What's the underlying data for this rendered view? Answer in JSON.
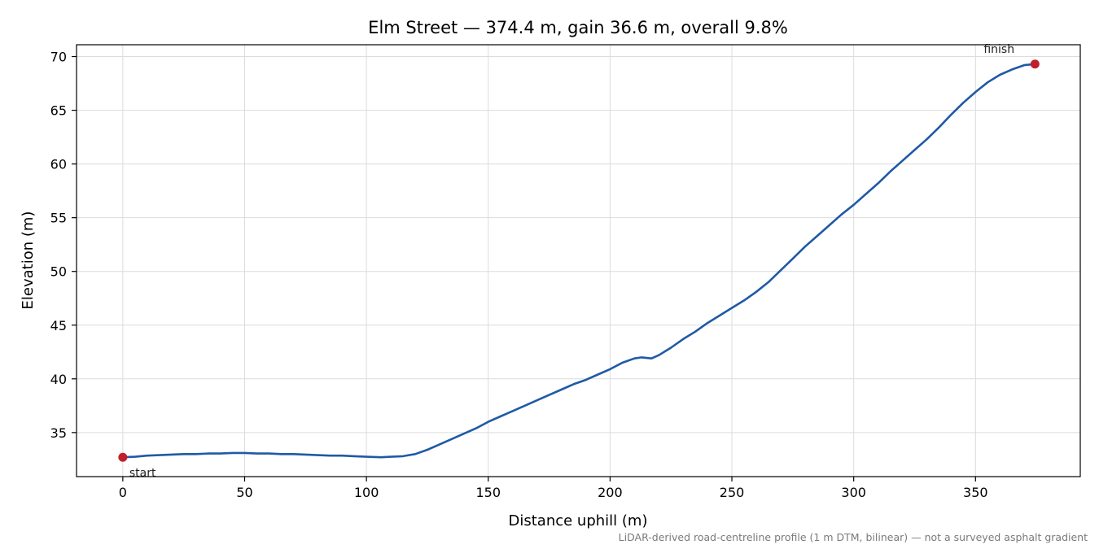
{
  "chart_data": {
    "type": "line",
    "title": "Elm Street — 374.4 m, gain 36.6 m, overall 9.8%",
    "xlabel": "Distance uphill (m)",
    "ylabel": "Elevation (m)",
    "xlim": [
      -19,
      393
    ],
    "ylim": [
      30.9,
      71.1
    ],
    "x_ticks": [
      0,
      50,
      100,
      150,
      200,
      250,
      300,
      350
    ],
    "y_ticks": [
      35,
      40,
      45,
      50,
      55,
      60,
      65,
      70
    ],
    "grid": true,
    "series": [
      {
        "color": "#1f5aa6",
        "points": [
          [
            0,
            32.7
          ],
          [
            5,
            32.75
          ],
          [
            10,
            32.85
          ],
          [
            15,
            32.9
          ],
          [
            20,
            32.95
          ],
          [
            25,
            33.0
          ],
          [
            30,
            33.0
          ],
          [
            35,
            33.05
          ],
          [
            40,
            33.05
          ],
          [
            45,
            33.1
          ],
          [
            50,
            33.1
          ],
          [
            55,
            33.05
          ],
          [
            60,
            33.05
          ],
          [
            65,
            33.0
          ],
          [
            70,
            33.0
          ],
          [
            75,
            32.95
          ],
          [
            80,
            32.9
          ],
          [
            85,
            32.85
          ],
          [
            90,
            32.85
          ],
          [
            95,
            32.8
          ],
          [
            100,
            32.75
          ],
          [
            106,
            32.7
          ],
          [
            110,
            32.75
          ],
          [
            115,
            32.8
          ],
          [
            120,
            33.0
          ],
          [
            125,
            33.4
          ],
          [
            130,
            33.9
          ],
          [
            135,
            34.4
          ],
          [
            140,
            34.9
          ],
          [
            145,
            35.4
          ],
          [
            150,
            36.0
          ],
          [
            155,
            36.5
          ],
          [
            160,
            37.0
          ],
          [
            165,
            37.5
          ],
          [
            170,
            38.0
          ],
          [
            175,
            38.5
          ],
          [
            180,
            39.0
          ],
          [
            185,
            39.5
          ],
          [
            190,
            39.9
          ],
          [
            195,
            40.4
          ],
          [
            200,
            40.9
          ],
          [
            205,
            41.5
          ],
          [
            210,
            41.9
          ],
          [
            213,
            42.0
          ],
          [
            217,
            41.9
          ],
          [
            220,
            42.2
          ],
          [
            225,
            42.9
          ],
          [
            230,
            43.7
          ],
          [
            235,
            44.4
          ],
          [
            240,
            45.2
          ],
          [
            245,
            45.9
          ],
          [
            250,
            46.6
          ],
          [
            255,
            47.3
          ],
          [
            260,
            48.1
          ],
          [
            265,
            49.0
          ],
          [
            270,
            50.1
          ],
          [
            275,
            51.2
          ],
          [
            280,
            52.3
          ],
          [
            285,
            53.3
          ],
          [
            290,
            54.3
          ],
          [
            295,
            55.3
          ],
          [
            300,
            56.2
          ],
          [
            305,
            57.2
          ],
          [
            310,
            58.2
          ],
          [
            315,
            59.3
          ],
          [
            320,
            60.3
          ],
          [
            325,
            61.3
          ],
          [
            330,
            62.3
          ],
          [
            335,
            63.4
          ],
          [
            340,
            64.6
          ],
          [
            345,
            65.7
          ],
          [
            350,
            66.7
          ],
          [
            355,
            67.6
          ],
          [
            360,
            68.3
          ],
          [
            365,
            68.8
          ],
          [
            370,
            69.2
          ],
          [
            374.4,
            69.3
          ]
        ]
      }
    ],
    "markers": [
      {
        "label": "start",
        "x": 0,
        "y": 32.7,
        "color": "#c0202a"
      },
      {
        "label": "finish",
        "x": 374.4,
        "y": 69.3,
        "color": "#c0202a"
      }
    ],
    "footnote": "LiDAR-derived road-centreline profile (1 m DTM, bilinear) — not a surveyed asphalt gradient"
  }
}
